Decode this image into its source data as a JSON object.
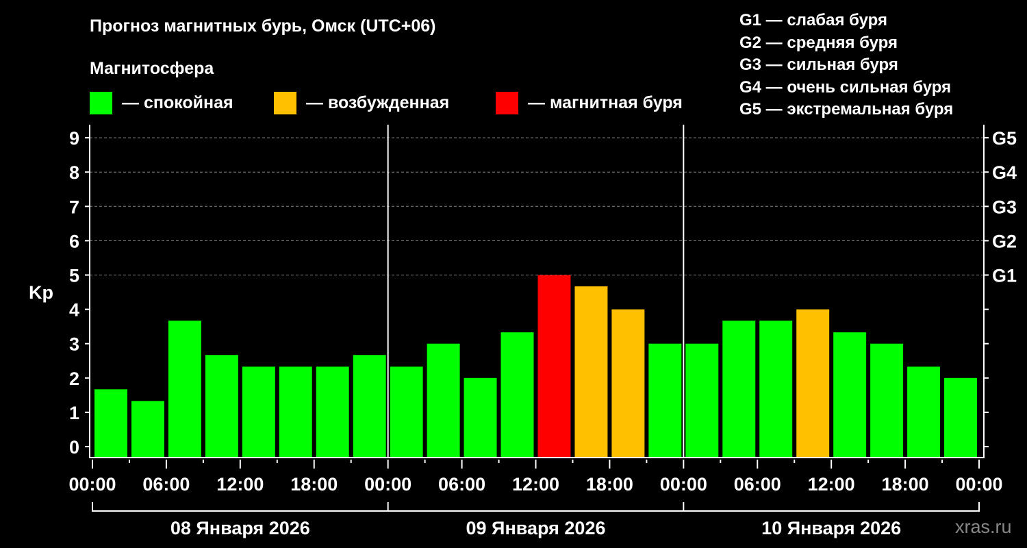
{
  "chart_data": {
    "type": "bar",
    "title": "Прогноз магнитных бурь, Омск (UTC+06)",
    "subtitle": "Магнитосфера",
    "legend": [
      {
        "label": "— спокойная",
        "color": "#00ff00"
      },
      {
        "label": "— возбужденная",
        "color": "#ffc000"
      },
      {
        "label": "— магнитная буря",
        "color": "#ff0000"
      }
    ],
    "g_scale": [
      "G1 — слабая буря",
      "G2 — средняя буря",
      "G3 — сильная буря",
      "G4 — очень сильная буря",
      "G5 — экстремальная буря"
    ],
    "ylabel": "Kp",
    "ylim": [
      0,
      9
    ],
    "yticks": [
      "0",
      "1",
      "2",
      "3",
      "4",
      "5",
      "6",
      "7",
      "8",
      "9"
    ],
    "right_ticks": [
      {
        "kp": 5,
        "label": "G1"
      },
      {
        "kp": 6,
        "label": "G2"
      },
      {
        "kp": 7,
        "label": "G3"
      },
      {
        "kp": 8,
        "label": "G4"
      },
      {
        "kp": 9,
        "label": "G5"
      }
    ],
    "grid": "dashed horizontal at 5–9",
    "xtick_labels": [
      "00:00",
      "06:00",
      "12:00",
      "18:00",
      "00:00",
      "06:00",
      "12:00",
      "18:00",
      "00:00",
      "06:00",
      "12:00",
      "18:00",
      "00:00"
    ],
    "days": [
      "08 Января 2026",
      "09 Января 2026",
      "10 Января 2026"
    ],
    "values": [
      1.67,
      1.33,
      3.67,
      2.67,
      2.33,
      2.33,
      2.33,
      2.67,
      2.33,
      3.0,
      2.0,
      3.33,
      5.0,
      4.67,
      4.0,
      3.0,
      3.0,
      3.67,
      3.67,
      4.0,
      3.33,
      3.0,
      2.33,
      2.0
    ],
    "colors": {
      "quiet": "#00ff00",
      "active": "#ffc000",
      "storm": "#ff0000"
    }
  },
  "watermark": "xras.ru"
}
